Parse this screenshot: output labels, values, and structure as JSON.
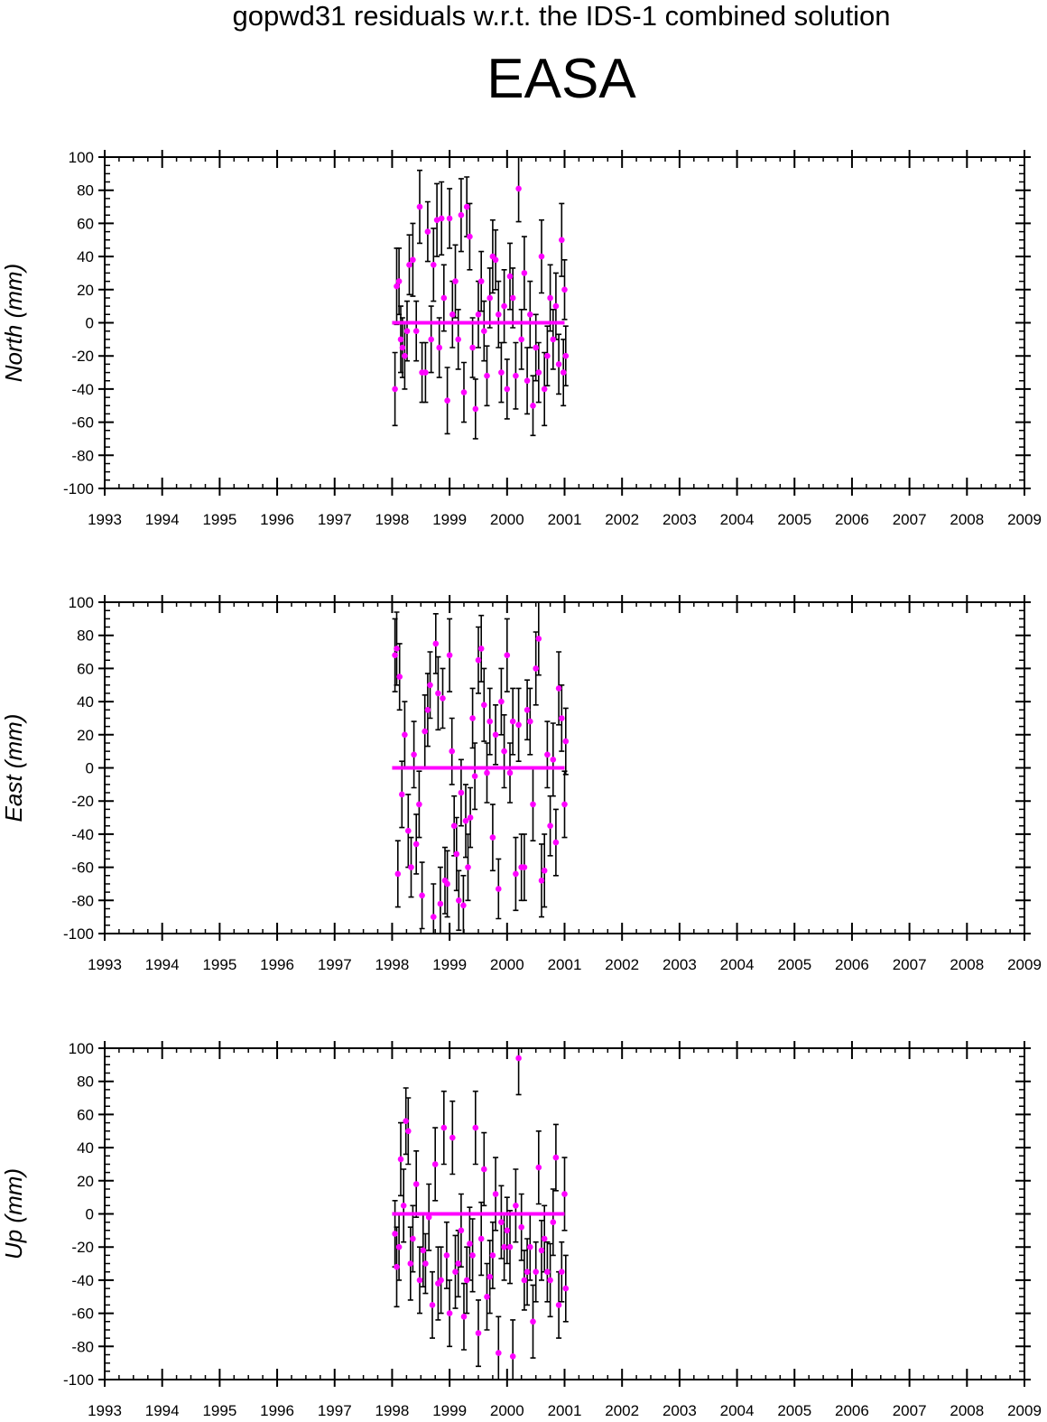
{
  "title": "gopwd31 residuals w.r.t. the IDS-1 combined solution",
  "station": "EASA",
  "colors": {
    "marker": "#ff00ff",
    "errorbar": "#000000",
    "zero_line": "#ff00ff",
    "frame": "#000000"
  },
  "chart_data": [
    {
      "type": "scatter",
      "ylabel": "North (mm)",
      "xlim": [
        1993,
        2009
      ],
      "ylim": [
        -100,
        100
      ],
      "x_ticks": [
        "1993",
        "1994",
        "1995",
        "1996",
        "1997",
        "1998",
        "1999",
        "2000",
        "2001",
        "2002",
        "2003",
        "2004",
        "2005",
        "2006",
        "2007",
        "2008",
        "2009"
      ],
      "y_ticks": [
        "100",
        "80",
        "60",
        "40",
        "20",
        "0",
        "-20",
        "-40",
        "-60",
        "-80",
        "-100"
      ],
      "zero_line": [
        1998.0,
        2001.0
      ],
      "series": [
        {
          "points": [
            [
              1998.05,
              -40,
              22
            ],
            [
              1998.08,
              22,
              23
            ],
            [
              1998.12,
              25,
              20
            ],
            [
              1998.15,
              -10,
              20
            ],
            [
              1998.18,
              -15,
              18
            ],
            [
              1998.22,
              -20,
              20
            ],
            [
              1998.26,
              -5,
              18
            ],
            [
              1998.3,
              35,
              18
            ],
            [
              1998.36,
              38,
              22
            ],
            [
              1998.42,
              -5,
              18
            ],
            [
              1998.48,
              70,
              22
            ],
            [
              1998.52,
              -30,
              18
            ],
            [
              1998.58,
              -30,
              18
            ],
            [
              1998.62,
              55,
              18
            ],
            [
              1998.68,
              -10,
              20
            ],
            [
              1998.72,
              35,
              22
            ],
            [
              1998.78,
              62,
              22
            ],
            [
              1998.82,
              -15,
              18
            ],
            [
              1998.86,
              63,
              22
            ],
            [
              1998.9,
              15,
              20
            ],
            [
              1998.96,
              -47,
              20
            ],
            [
              1999.0,
              63,
              18
            ],
            [
              1999.05,
              5,
              20
            ],
            [
              1999.1,
              25,
              22
            ],
            [
              1999.15,
              -10,
              18
            ],
            [
              1999.2,
              65,
              22
            ],
            [
              1999.25,
              -42,
              18
            ],
            [
              1999.3,
              70,
              18
            ],
            [
              1999.35,
              52,
              20
            ],
            [
              1999.4,
              -15,
              18
            ],
            [
              1999.45,
              -52,
              18
            ],
            [
              1999.5,
              5,
              20
            ],
            [
              1999.55,
              25,
              18
            ],
            [
              1999.6,
              -5,
              18
            ],
            [
              1999.65,
              -32,
              18
            ],
            [
              1999.7,
              15,
              18
            ],
            [
              1999.75,
              40,
              22
            ],
            [
              1999.8,
              38,
              18
            ],
            [
              1999.85,
              5,
              20
            ],
            [
              1999.9,
              -30,
              18
            ],
            [
              1999.95,
              10,
              22
            ],
            [
              2000.0,
              -40,
              18
            ],
            [
              2000.05,
              28,
              20
            ],
            [
              2000.1,
              15,
              18
            ],
            [
              2000.15,
              -32,
              20
            ],
            [
              2000.2,
              81,
              20
            ],
            [
              2000.25,
              -10,
              18
            ],
            [
              2000.3,
              30,
              22
            ],
            [
              2000.35,
              -35,
              20
            ],
            [
              2000.4,
              5,
              20
            ],
            [
              2000.45,
              -50,
              18
            ],
            [
              2000.5,
              -15,
              20
            ],
            [
              2000.55,
              -30,
              18
            ],
            [
              2000.6,
              40,
              22
            ],
            [
              2000.65,
              -40,
              22
            ],
            [
              2000.7,
              -20,
              18
            ],
            [
              2000.75,
              15,
              20
            ],
            [
              2000.8,
              -10,
              18
            ],
            [
              2000.85,
              10,
              20
            ],
            [
              2000.9,
              -25,
              18
            ],
            [
              2000.95,
              50,
              22
            ],
            [
              2000.98,
              -30,
              20
            ],
            [
              2001.02,
              -20,
              18
            ],
            [
              2001.0,
              20,
              18
            ]
          ]
        }
      ]
    },
    {
      "type": "scatter",
      "ylabel": "East (mm)",
      "xlim": [
        1993,
        2009
      ],
      "ylim": [
        -100,
        100
      ],
      "x_ticks": [
        "1993",
        "1994",
        "1995",
        "1996",
        "1997",
        "1998",
        "1999",
        "2000",
        "2001",
        "2002",
        "2003",
        "2004",
        "2005",
        "2006",
        "2007",
        "2008",
        "2009"
      ],
      "y_ticks": [
        "100",
        "80",
        "60",
        "40",
        "20",
        "0",
        "-20",
        "-40",
        "-60",
        "-80",
        "-100"
      ],
      "zero_line": [
        1998.0,
        2001.0
      ],
      "series": [
        {
          "points": [
            [
              1998.05,
              68,
              22
            ],
            [
              1998.08,
              72,
              22
            ],
            [
              1998.1,
              -64,
              20
            ],
            [
              1998.13,
              55,
              20
            ],
            [
              1998.17,
              -16,
              20
            ],
            [
              1998.22,
              20,
              20
            ],
            [
              1998.28,
              -38,
              22
            ],
            [
              1998.33,
              -60,
              18
            ],
            [
              1998.38,
              8,
              20
            ],
            [
              1998.42,
              -46,
              18
            ],
            [
              1998.47,
              -22,
              20
            ],
            [
              1998.52,
              -77,
              20
            ],
            [
              1998.57,
              22,
              22
            ],
            [
              1998.62,
              35,
              22
            ],
            [
              1998.66,
              50,
              20
            ],
            [
              1998.72,
              -90,
              20
            ],
            [
              1998.76,
              75,
              18
            ],
            [
              1998.8,
              45,
              22
            ],
            [
              1998.84,
              -82,
              22
            ],
            [
              1998.88,
              42,
              18
            ],
            [
              1998.92,
              -68,
              20
            ],
            [
              1998.96,
              -70,
              20
            ],
            [
              1999.0,
              68,
              22
            ],
            [
              1999.04,
              10,
              20
            ],
            [
              1999.08,
              -35,
              18
            ],
            [
              1999.12,
              -52,
              22
            ],
            [
              1999.16,
              -80,
              18
            ],
            [
              1999.2,
              -15,
              20
            ],
            [
              1999.24,
              -83,
              18
            ],
            [
              1999.28,
              -32,
              22
            ],
            [
              1999.32,
              -60,
              20
            ],
            [
              1999.36,
              -30,
              18
            ],
            [
              1999.4,
              30,
              18
            ],
            [
              1999.44,
              -5,
              20
            ],
            [
              1999.5,
              65,
              20
            ],
            [
              1999.55,
              72,
              20
            ],
            [
              1999.6,
              38,
              22
            ],
            [
              1999.65,
              -3,
              18
            ],
            [
              1999.7,
              28,
              20
            ],
            [
              1999.75,
              -42,
              20
            ],
            [
              1999.8,
              20,
              18
            ],
            [
              1999.85,
              -73,
              18
            ],
            [
              1999.9,
              40,
              20
            ],
            [
              1999.95,
              10,
              22
            ],
            [
              2000.0,
              68,
              22
            ],
            [
              2000.05,
              -3,
              18
            ],
            [
              2000.1,
              28,
              20
            ],
            [
              2000.15,
              -64,
              22
            ],
            [
              2000.2,
              26,
              22
            ],
            [
              2000.25,
              -60,
              20
            ],
            [
              2000.3,
              -60,
              20
            ],
            [
              2000.35,
              35,
              18
            ],
            [
              2000.4,
              28,
              20
            ],
            [
              2000.45,
              -22,
              22
            ],
            [
              2000.5,
              60,
              22
            ],
            [
              2000.55,
              78,
              22
            ],
            [
              2000.6,
              -68,
              22
            ],
            [
              2000.65,
              -62,
              22
            ],
            [
              2000.7,
              8,
              20
            ],
            [
              2000.75,
              -35,
              18
            ],
            [
              2000.8,
              5,
              22
            ],
            [
              2000.85,
              -45,
              20
            ],
            [
              2000.9,
              48,
              22
            ],
            [
              2000.95,
              30,
              20
            ],
            [
              2001.0,
              -22,
              20
            ],
            [
              2001.02,
              16,
              20
            ]
          ]
        }
      ]
    },
    {
      "type": "scatter",
      "ylabel": "Up (mm)",
      "xlim": [
        1993,
        2009
      ],
      "ylim": [
        -100,
        100
      ],
      "x_ticks": [
        "1993",
        "1994",
        "1995",
        "1996",
        "1997",
        "1998",
        "1999",
        "2000",
        "2001",
        "2002",
        "2003",
        "2004",
        "2005",
        "2006",
        "2007",
        "2008",
        "2009"
      ],
      "y_ticks": [
        "100",
        "80",
        "60",
        "40",
        "20",
        "0",
        "-20",
        "-40",
        "-60",
        "-80",
        "-100"
      ],
      "zero_line": [
        1998.0,
        2001.0
      ],
      "series": [
        {
          "points": [
            [
              1998.05,
              -12,
              20
            ],
            [
              1998.08,
              -32,
              24
            ],
            [
              1998.12,
              -20,
              20
            ],
            [
              1998.15,
              33,
              22
            ],
            [
              1998.2,
              5,
              22
            ],
            [
              1998.24,
              56,
              20
            ],
            [
              1998.28,
              50,
              20
            ],
            [
              1998.32,
              -30,
              22
            ],
            [
              1998.36,
              -15,
              20
            ],
            [
              1998.42,
              18,
              20
            ],
            [
              1998.48,
              -40,
              20
            ],
            [
              1998.54,
              -22,
              22
            ],
            [
              1998.58,
              -30,
              18
            ],
            [
              1998.64,
              -2,
              20
            ],
            [
              1998.7,
              -55,
              20
            ],
            [
              1998.75,
              30,
              22
            ],
            [
              1998.8,
              -42,
              22
            ],
            [
              1998.85,
              -40,
              20
            ],
            [
              1998.9,
              52,
              22
            ],
            [
              1998.95,
              -25,
              20
            ],
            [
              1999.0,
              -60,
              20
            ],
            [
              1999.05,
              46,
              22
            ],
            [
              1999.1,
              -35,
              22
            ],
            [
              1999.15,
              -30,
              20
            ],
            [
              1999.2,
              -10,
              22
            ],
            [
              1999.25,
              -62,
              20
            ],
            [
              1999.3,
              -40,
              20
            ],
            [
              1999.35,
              -18,
              22
            ],
            [
              1999.4,
              -25,
              22
            ],
            [
              1999.45,
              52,
              22
            ],
            [
              1999.5,
              -72,
              20
            ],
            [
              1999.55,
              -15,
              22
            ],
            [
              1999.6,
              27,
              22
            ],
            [
              1999.65,
              -50,
              20
            ],
            [
              1999.7,
              -38,
              22
            ],
            [
              1999.75,
              -25,
              20
            ],
            [
              1999.8,
              12,
              22
            ],
            [
              1999.85,
              -84,
              22
            ],
            [
              1999.9,
              -5,
              22
            ],
            [
              1999.95,
              -20,
              20
            ],
            [
              2000.0,
              -10,
              20
            ],
            [
              2000.05,
              -20,
              22
            ],
            [
              2000.1,
              -86,
              22
            ],
            [
              2000.15,
              5,
              22
            ],
            [
              2000.2,
              94,
              22
            ],
            [
              2000.25,
              -8,
              20
            ],
            [
              2000.3,
              -40,
              18
            ],
            [
              2000.35,
              -35,
              20
            ],
            [
              2000.4,
              -20,
              20
            ],
            [
              2000.45,
              -65,
              22
            ],
            [
              2000.5,
              -35,
              18
            ],
            [
              2000.55,
              28,
              22
            ],
            [
              2000.6,
              -22,
              18
            ],
            [
              2000.65,
              -15,
              20
            ],
            [
              2000.7,
              -35,
              18
            ],
            [
              2000.75,
              -40,
              22
            ],
            [
              2000.8,
              -5,
              20
            ],
            [
              2000.85,
              34,
              20
            ],
            [
              2000.9,
              -55,
              20
            ],
            [
              2000.95,
              -35,
              18
            ],
            [
              2001.0,
              12,
              22
            ],
            [
              2001.02,
              -45,
              20
            ]
          ]
        }
      ]
    }
  ]
}
